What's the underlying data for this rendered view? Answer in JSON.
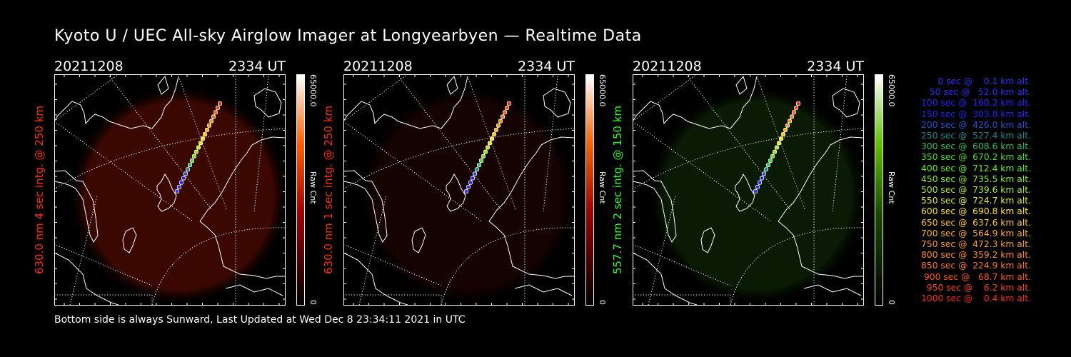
{
  "title": "Kyoto U / UEC All-sky Airglow Imager at Longyearbyen — Realtime Data",
  "panels": [
    {
      "date": "20211208",
      "time": "2334 UT",
      "label": "630.0 nm 4 sec intg. @ 250 km",
      "label_color": "#ff2a00",
      "cbar_max": "65000.0",
      "cbar_name": "Raw Cnt",
      "cbar_min": "0",
      "glow": "#3a0800",
      "theme": "red"
    },
    {
      "date": "20211208",
      "time": "2334 UT",
      "label": "630.0 nm 1 sec intg. @ 250 km",
      "label_color": "#ff2a00",
      "cbar_max": "65000.0",
      "cbar_name": "Raw Cnt",
      "cbar_min": "0",
      "glow": "#140300",
      "theme": "red"
    },
    {
      "date": "20211208",
      "time": "2334 UT",
      "label": "557.7 nm 2 sec intg. @ 150 km",
      "label_color": "#20ff20",
      "cbar_max": "65000.0",
      "cbar_name": "Raw Cnt",
      "cbar_min": "0",
      "glow": "#0a1a04",
      "theme": "green"
    }
  ],
  "legend": [
    {
      "text": "0 sec @    0.1 km alt.",
      "color": "#3030ff"
    },
    {
      "text": "50 sec @   52.0 km alt.",
      "color": "#2828ff"
    },
    {
      "text": "100 sec @  160.2 km alt.",
      "color": "#2020ff"
    },
    {
      "text": "150 sec @  303.8 km alt.",
      "color": "#2020f0"
    },
    {
      "text": "200 sec @  426.0 km alt.",
      "color": "#2050d0"
    },
    {
      "text": "250 sec @  527.4 km alt.",
      "color": "#108888"
    },
    {
      "text": "300 sec @  608.6 km alt.",
      "color": "#20c060"
    },
    {
      "text": "350 sec @  670.2 km alt.",
      "color": "#40e020"
    },
    {
      "text": "400 sec @  712.4 km alt.",
      "color": "#60f000"
    },
    {
      "text": "450 sec @  735.5 km alt.",
      "color": "#90f000"
    },
    {
      "text": "500 sec @  739.6 km alt.",
      "color": "#b0f000"
    },
    {
      "text": "550 sec @  724.7 km alt.",
      "color": "#e0f000"
    },
    {
      "text": "600 sec @  690.8 km alt.",
      "color": "#ffe800"
    },
    {
      "text": "650 sec @  637.6 km alt.",
      "color": "#ffc800"
    },
    {
      "text": "700 sec @  564.9 km alt.",
      "color": "#ffb000"
    },
    {
      "text": "750 sec @  472.3 km alt.",
      "color": "#ffa000"
    },
    {
      "text": "800 sec @  359.2 km alt.",
      "color": "#ff9000"
    },
    {
      "text": "850 sec @  224.9 km alt.",
      "color": "#ff7800"
    },
    {
      "text": "900 sec @   68.7 km alt.",
      "color": "#ff5800"
    },
    {
      "text": "950 sec @    6.2 km alt.",
      "color": "#ff4000"
    },
    {
      "text": "1000 sec @    0.4 km alt.",
      "color": "#ff2800"
    }
  ],
  "footer": "Bottom side is always Sunward, Last Updated at Wed Dec  8 23:34:11 2021 in UTC"
}
